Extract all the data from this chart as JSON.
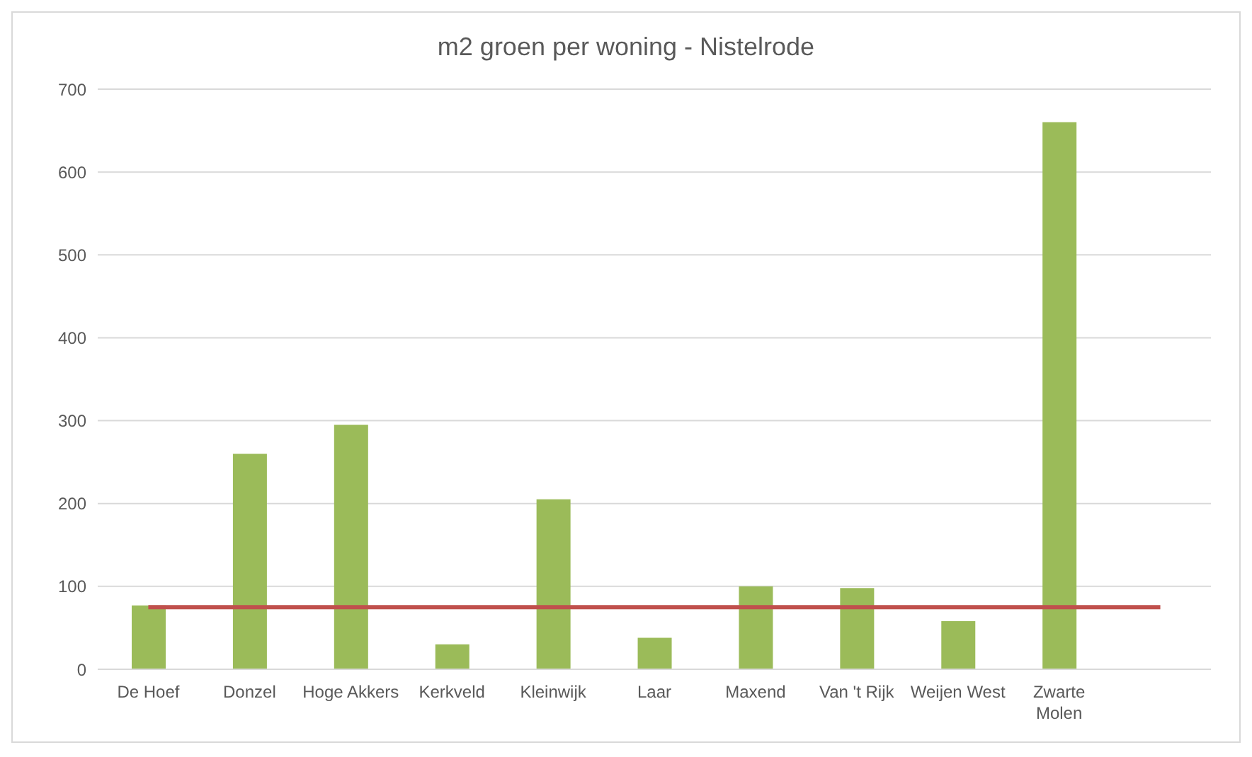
{
  "chart_data": {
    "type": "bar",
    "title": "m2 groen per woning - Nistelrode",
    "categories": [
      "De Hoef",
      "Donzel",
      "Hoge Akkers",
      "Kerkveld",
      "Kleinwijk",
      "Laar",
      "Maxend",
      "Van 't Rijk",
      "Weijen West",
      "Zwarte Molen",
      null
    ],
    "series": [
      {
        "color": "#9bbb59",
        "values": [
          77,
          260,
          295,
          30,
          205,
          38,
          100,
          98,
          58,
          660,
          null
        ]
      },
      {
        "type": "line",
        "color": "#c0504d",
        "values": [
          75,
          75,
          75,
          75,
          75,
          75,
          75,
          75,
          75,
          75,
          75
        ]
      }
    ],
    "ylim": [
      0,
      700
    ],
    "yticks": [
      0,
      100,
      200,
      300,
      400,
      500,
      600,
      700
    ],
    "grid": "y",
    "legend": false,
    "marker": "none"
  }
}
